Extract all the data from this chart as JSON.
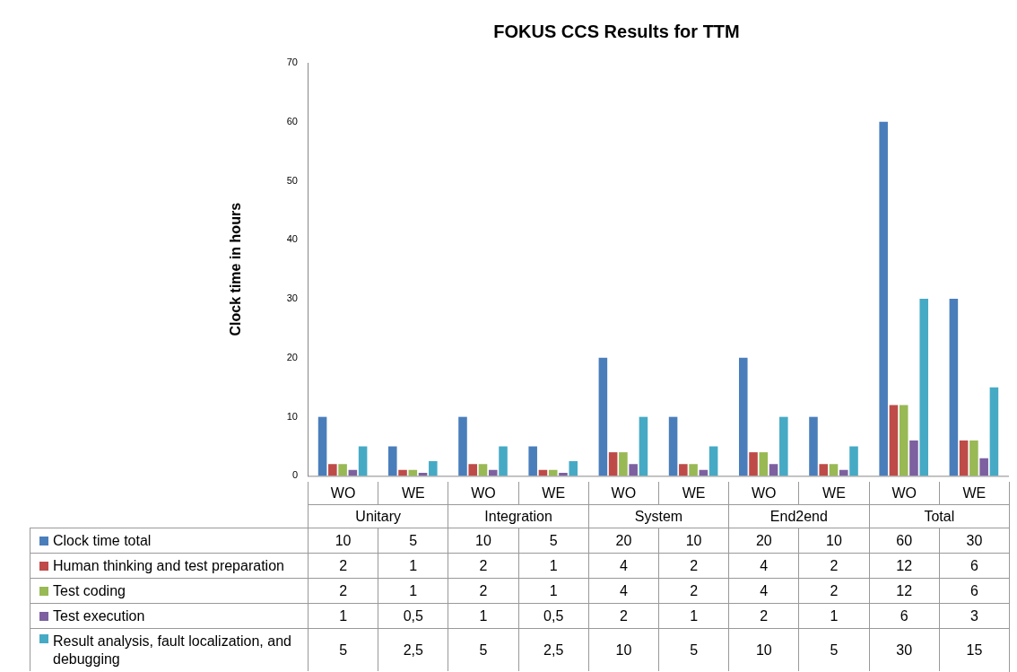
{
  "chart_data": {
    "type": "bar",
    "title": "FOKUS CCS Results for TTM",
    "ylabel": "Clock time in hours",
    "categories": [
      "WO",
      "WE",
      "WO",
      "WE",
      "WO",
      "WE",
      "WO",
      "WE",
      "WO",
      "WE"
    ],
    "annotations": [
      "Unitary",
      "Integration",
      "System",
      "End2end",
      "Total"
    ],
    "series": [
      {
        "name": "Clock time total",
        "color": "#4a7ebb",
        "values": [
          10,
          5,
          10,
          5,
          20,
          10,
          20,
          10,
          60,
          30
        ],
        "value_labels": [
          "10",
          "5",
          "10",
          "5",
          "20",
          "10",
          "20",
          "10",
          "60",
          "30"
        ]
      },
      {
        "name": "Human thinking and test preparation",
        "color": "#be4b48",
        "values": [
          2,
          1,
          2,
          1,
          4,
          2,
          4,
          2,
          12,
          6
        ],
        "value_labels": [
          "2",
          "1",
          "2",
          "1",
          "4",
          "2",
          "4",
          "2",
          "12",
          "6"
        ]
      },
      {
        "name": "Test coding",
        "color": "#98b954",
        "values": [
          2,
          1,
          2,
          1,
          4,
          2,
          4,
          2,
          12,
          6
        ],
        "value_labels": [
          "2",
          "1",
          "2",
          "1",
          "4",
          "2",
          "4",
          "2",
          "12",
          "6"
        ]
      },
      {
        "name": "Test execution",
        "color": "#7d60a0",
        "values": [
          1,
          0.5,
          1,
          0.5,
          2,
          1,
          2,
          1,
          6,
          3
        ],
        "value_labels": [
          "1",
          "0,5",
          "1",
          "0,5",
          "2",
          "1",
          "2",
          "1",
          "6",
          "3"
        ]
      },
      {
        "name": "Result analysis, fault localization, and debugging",
        "color": "#46aac5",
        "values": [
          5,
          2.5,
          5,
          2.5,
          10,
          5,
          10,
          5,
          30,
          15
        ],
        "value_labels": [
          "5",
          "2,5",
          "5",
          "2,5",
          "10",
          "5",
          "10",
          "5",
          "30",
          "15"
        ]
      }
    ],
    "ylim": [
      0,
      70
    ],
    "yticks": [
      0,
      10,
      20,
      30,
      40,
      50,
      60,
      70
    ],
    "grid": false,
    "legend": "bottom"
  }
}
